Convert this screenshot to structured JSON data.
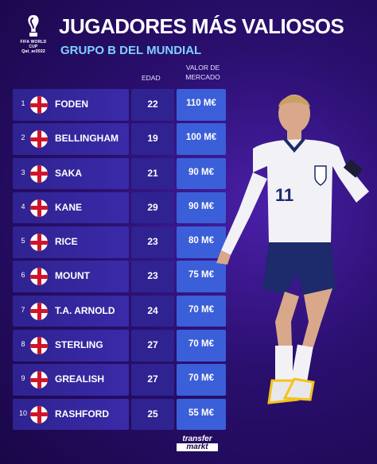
{
  "logo": {
    "line1": "FIFA WORLD CUP",
    "line2": "Qat_ar2022"
  },
  "title": "JUGADORES MÁS VALIOSOS",
  "subtitle": "GRUPO B DEL MUNDIAL",
  "headers": {
    "age": "EDAD",
    "value_line1": "VALOR DE",
    "value_line2": "MERCADO"
  },
  "players": [
    {
      "rank": "1",
      "name": "FODEN",
      "age": "22",
      "value": "110 M€"
    },
    {
      "rank": "2",
      "name": "BELLINGHAM",
      "age": "19",
      "value": "100 M€"
    },
    {
      "rank": "3",
      "name": "SAKA",
      "age": "21",
      "value": "90 M€"
    },
    {
      "rank": "4",
      "name": "KANE",
      "age": "29",
      "value": "90 M€"
    },
    {
      "rank": "5",
      "name": "RICE",
      "age": "23",
      "value": "80 M€"
    },
    {
      "rank": "6",
      "name": "MOUNT",
      "age": "23",
      "value": "75 M€"
    },
    {
      "rank": "7",
      "name": "T.A. ARNOLD",
      "age": "24",
      "value": "70 M€"
    },
    {
      "rank": "8",
      "name": "STERLING",
      "age": "27",
      "value": "70 M€"
    },
    {
      "rank": "9",
      "name": "GREALISH",
      "age": "27",
      "value": "70 M€"
    },
    {
      "rank": "10",
      "name": "RASHFORD",
      "age": "25",
      "value": "55 M€"
    }
  ],
  "player_image": {
    "icon": "football-player-illustration",
    "shirt_number": "11"
  },
  "brand": {
    "line1": "transfer",
    "line2": "markt"
  },
  "colors": {
    "background": "#2a0f6e",
    "accent": "#7fd0ff",
    "value_cell": "#3b5fd9",
    "flag_red": "#d0142a"
  }
}
